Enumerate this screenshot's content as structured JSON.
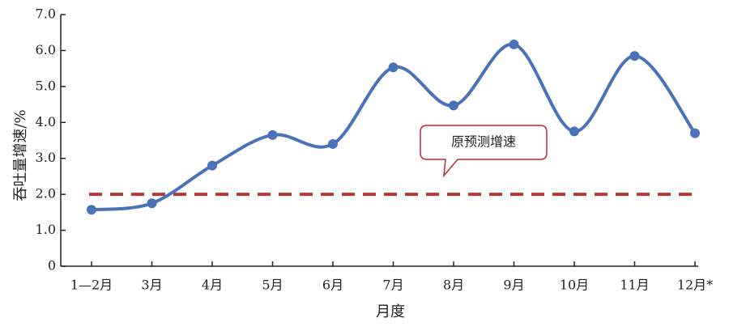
{
  "chart_data": {
    "type": "line",
    "x_label": "月度",
    "y_label": "吞吐量增速/%",
    "categories": [
      "1—2月",
      "3月",
      "4月",
      "5月",
      "6月",
      "7月",
      "8月",
      "9月",
      "10月",
      "11月",
      "12月*"
    ],
    "series": [
      {
        "name": "吞吐量增速",
        "color": "#4a72b8",
        "values": [
          1.57,
          1.75,
          2.8,
          3.65,
          3.4,
          5.53,
          4.47,
          6.17,
          3.75,
          5.85,
          3.7
        ]
      }
    ],
    "reference_line": {
      "value": 2,
      "label": "原预测增速",
      "color": "#b03a3a"
    },
    "ylim": [
      0,
      7
    ],
    "yticks": [
      0,
      {
        "value": 1,
        "label": "1.0"
      },
      {
        "value": 2,
        "label": "2.0"
      },
      {
        "value": 3,
        "label": "3.0"
      },
      {
        "value": 4,
        "label": "4.0"
      },
      {
        "value": 5,
        "label": "5.0"
      },
      {
        "value": 6,
        "label": "6.0"
      },
      {
        "value": 7,
        "label": "7.0"
      }
    ],
    "grid": false,
    "smooth": true
  }
}
